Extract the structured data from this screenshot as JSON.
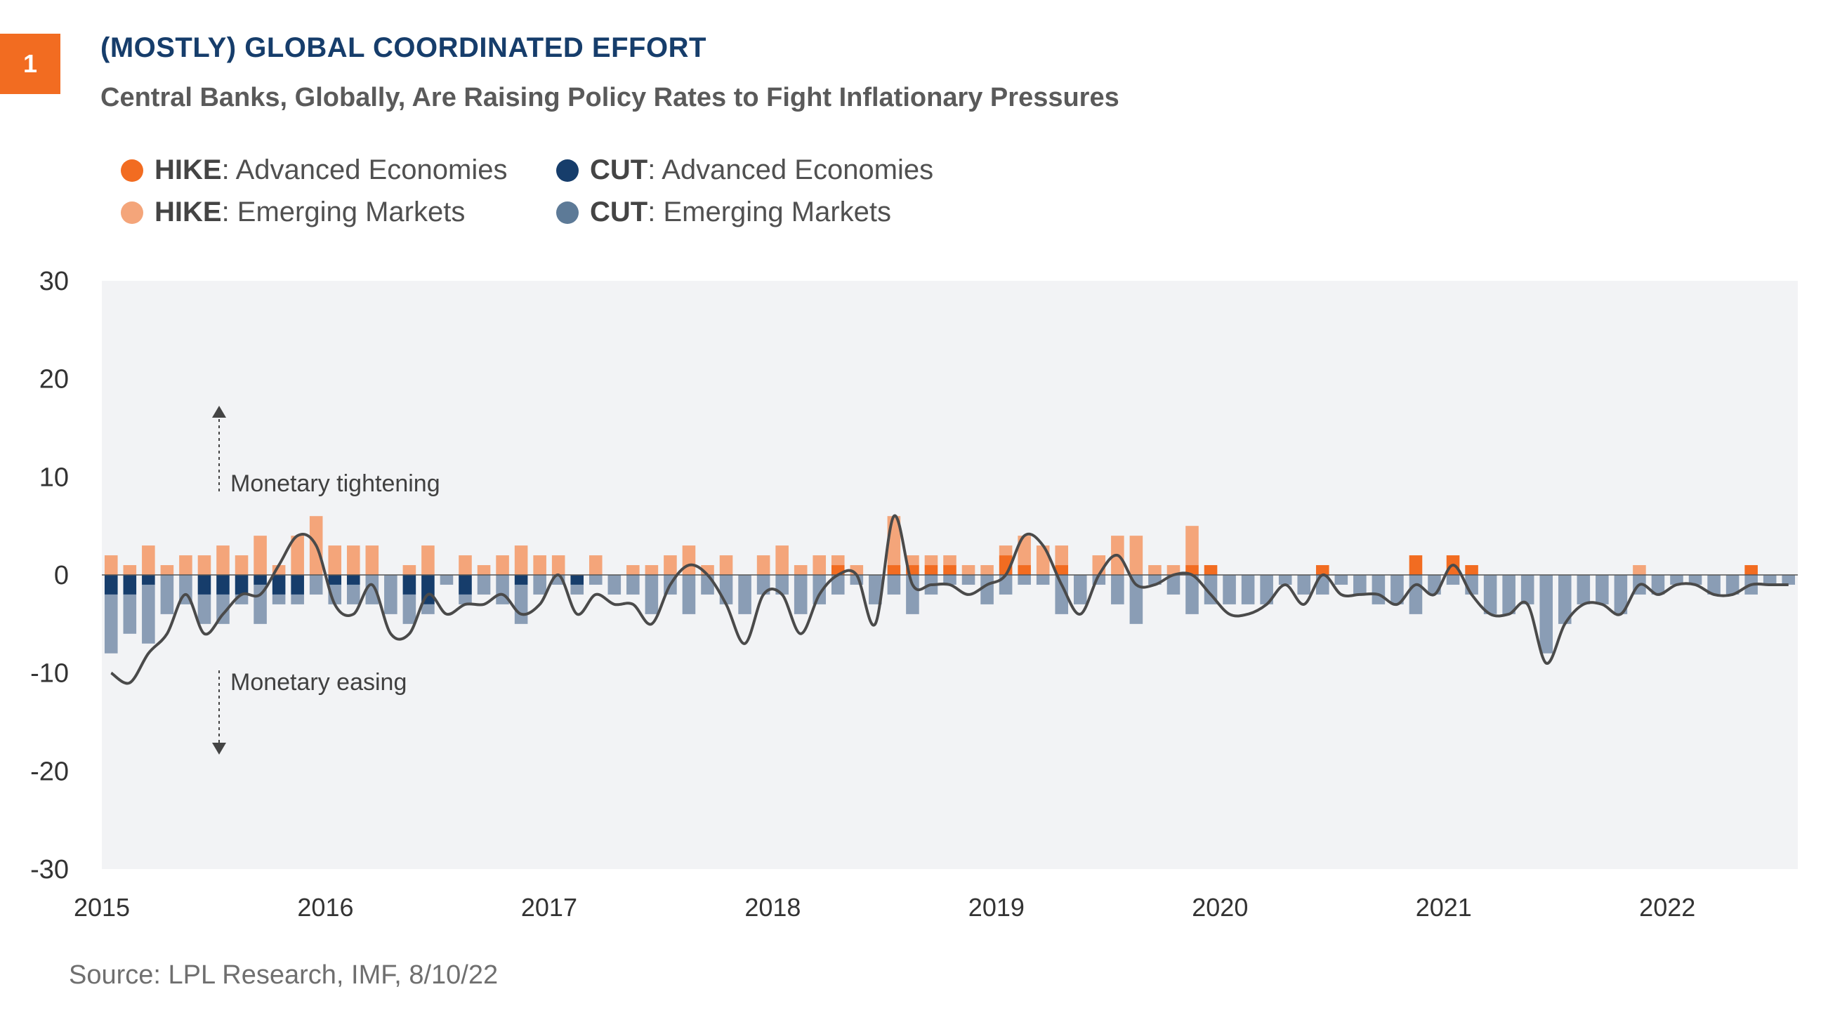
{
  "badge": "1",
  "title": "(MOSTLY) GLOBAL COORDINATED EFFORT",
  "subtitle": "Central Banks, Globally, Are Raising Policy Rates to Fight Inflationary Pressures",
  "legend": [
    {
      "key": "HIKE",
      "text": ": Advanced Economies",
      "color": "#f26c21"
    },
    {
      "key": "CUT",
      "text": ": Advanced Economies",
      "color": "#163d6b"
    },
    {
      "key": "HIKE",
      "text": ": Emerging Markets",
      "color": "#f4a57a"
    },
    {
      "key": "CUT",
      "text": ": Emerging Markets",
      "color": "#5d7a97"
    }
  ],
  "annotations": {
    "tightening": "Monetary tightening",
    "easing": "Monetary easing"
  },
  "source": "Source: LPL Research, IMF,  8/10/22",
  "chart_data": {
    "type": "bar",
    "ylim": [
      -30,
      30
    ],
    "yticks": [
      "30",
      "20",
      "10",
      "0",
      "-10",
      "-20",
      "-30"
    ],
    "xticks": [
      "2015",
      "2016",
      "2017",
      "2018",
      "2019",
      "2020",
      "2021",
      "2022"
    ],
    "grid": false,
    "legend_position": "top-left",
    "colors": {
      "hike_ae": "#f26c21",
      "hike_em": "#f4a57a",
      "cut_ae": "#163d6b",
      "cut_em": "#8a9db5",
      "net_line": "#4a4a4a",
      "plot_bg": "#f2f3f5"
    },
    "months": 91,
    "series": [
      {
        "name": "HIKE: Advanced Economies",
        "values": [
          0,
          0,
          0,
          0,
          0,
          0,
          0,
          0,
          0,
          0,
          0,
          0,
          0,
          0,
          0,
          0,
          0,
          0,
          0,
          0,
          0,
          0,
          0,
          0,
          0,
          0,
          0,
          0,
          0,
          0,
          0,
          0,
          0,
          0,
          0,
          0,
          0,
          0,
          0,
          1,
          0,
          0,
          1,
          1,
          1,
          1,
          0,
          0,
          2,
          1,
          0,
          1,
          0,
          0,
          0,
          0,
          0,
          0,
          1,
          1,
          0,
          0,
          0,
          0,
          0,
          1,
          0,
          0,
          0,
          0,
          2,
          0,
          2,
          1,
          0,
          0,
          0,
          0,
          0,
          0,
          0,
          0,
          0,
          0,
          0,
          0,
          0,
          0,
          1,
          0,
          0
        ]
      },
      {
        "name": "HIKE: Emerging Markets",
        "values": [
          2,
          1,
          3,
          1,
          2,
          2,
          3,
          2,
          4,
          1,
          4,
          6,
          3,
          3,
          3,
          0,
          1,
          3,
          0,
          2,
          1,
          2,
          3,
          2,
          2,
          0,
          2,
          0,
          1,
          1,
          2,
          3,
          1,
          2,
          0,
          2,
          3,
          1,
          2,
          1,
          1,
          0,
          5,
          1,
          1,
          1,
          1,
          1,
          1,
          3,
          3,
          2,
          0,
          2,
          4,
          4,
          1,
          1,
          4,
          0,
          0,
          0,
          0,
          0,
          0,
          0,
          0,
          0,
          0,
          0,
          0,
          0,
          0,
          0,
          0,
          0,
          0,
          0,
          0,
          0,
          0,
          0,
          1,
          0,
          0,
          0,
          0,
          0,
          0,
          0,
          0
        ]
      },
      {
        "name": "CUT: Advanced Economies",
        "values": [
          -2,
          -2,
          -1,
          0,
          0,
          -2,
          -2,
          -2,
          -1,
          -2,
          -2,
          0,
          -1,
          -1,
          0,
          0,
          -2,
          -3,
          0,
          -2,
          0,
          0,
          -1,
          0,
          0,
          -1,
          0,
          0,
          0,
          0,
          0,
          0,
          0,
          0,
          0,
          0,
          0,
          0,
          0,
          0,
          0,
          0,
          0,
          0,
          0,
          0,
          0,
          0,
          0,
          0,
          0,
          0,
          0,
          0,
          0,
          0,
          0,
          0,
          0,
          0,
          0,
          0,
          0,
          0,
          0,
          0,
          0,
          0,
          0,
          0,
          0,
          0,
          0,
          0,
          0,
          0,
          0,
          0,
          0,
          0,
          0,
          0,
          0,
          0,
          0,
          0,
          0,
          0,
          0,
          0,
          0
        ]
      },
      {
        "name": "CUT: Emerging Markets",
        "values": [
          -6,
          -4,
          -6,
          -4,
          -3,
          -3,
          -3,
          -1,
          -4,
          -1,
          -1,
          -2,
          -2,
          -2,
          -3,
          -4,
          -3,
          -1,
          -1,
          -1,
          -2,
          -3,
          -4,
          -2,
          -1,
          -1,
          -1,
          -2,
          -2,
          -4,
          -2,
          -4,
          -2,
          -3,
          -4,
          -2,
          -2,
          -4,
          -3,
          -2,
          -1,
          -3,
          -2,
          -4,
          -2,
          -1,
          -1,
          -3,
          -2,
          -1,
          -1,
          -4,
          -3,
          -1,
          -3,
          -5,
          -1,
          -2,
          -4,
          -3,
          -3,
          -3,
          -3,
          -1,
          -2,
          -2,
          -1,
          -2,
          -3,
          -3,
          -4,
          -2,
          -1,
          -2,
          -4,
          -4,
          -3,
          -8,
          -5,
          -3,
          -3,
          -4,
          -2,
          -2,
          -1,
          -1,
          -2,
          -2,
          -2,
          -1,
          -1
        ]
      },
      {
        "name": "Net",
        "values": [
          -4,
          -6,
          -4,
          -3,
          -1,
          -3,
          -2,
          -1,
          -1,
          3,
          3,
          -1,
          -3,
          -4,
          -1,
          -2,
          -2,
          -1,
          -3,
          -2,
          -2,
          -1,
          -2,
          -3,
          -1,
          -2,
          -3,
          -1,
          -2,
          -2,
          -1,
          2,
          1,
          -2,
          -3,
          -2,
          -3,
          -3,
          -1,
          0,
          0,
          -2,
          2,
          1,
          -1,
          -2,
          -2,
          1,
          -1,
          1,
          1,
          0,
          -1,
          -1,
          1,
          0,
          -1,
          1,
          -1,
          0,
          -1,
          -1,
          0,
          0,
          -1,
          1,
          -1,
          0,
          1,
          0,
          1,
          0,
          0,
          -1,
          0,
          0,
          0,
          -1,
          0,
          0,
          0,
          0,
          0,
          0,
          0,
          0,
          0,
          0,
          0,
          0,
          0
        ]
      }
    ]
  }
}
